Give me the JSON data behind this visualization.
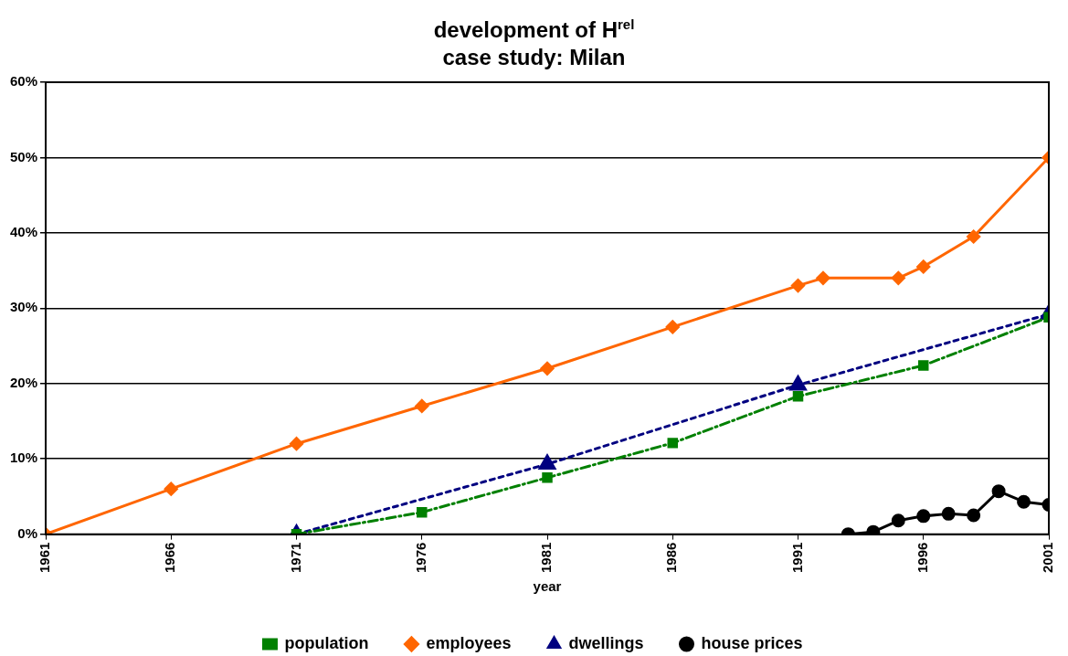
{
  "chart_data": {
    "type": "line",
    "title": "development of H$^{rel}$",
    "subtitle": "case study: Milan",
    "xlabel": "year",
    "xlim": [
      1961,
      2001
    ],
    "xticks": [
      1961,
      1966,
      1971,
      1976,
      1981,
      1986,
      1991,
      1996,
      2001
    ],
    "ylim": [
      0,
      60
    ],
    "yticks": [
      {
        "value": 0,
        "label": "0%"
      },
      {
        "value": 10,
        "label": "10%"
      },
      {
        "value": 20,
        "label": "20%"
      },
      {
        "value": 30,
        "label": "30%"
      },
      {
        "value": 40,
        "label": "40%"
      },
      {
        "value": 50,
        "label": "50%"
      },
      {
        "value": 60,
        "label": "60%"
      }
    ],
    "grid": "y",
    "legend": "bottom",
    "series": [
      {
        "name": "population",
        "color": "#008000",
        "marker": "square",
        "line_style": "dashed",
        "x": [
          1971,
          1976,
          1981,
          1986,
          1991,
          1996,
          2001
        ],
        "values": [
          0,
          2.9,
          7.5,
          12.1,
          18.3,
          22.4,
          28.8
        ]
      },
      {
        "name": "employees",
        "color": "#ff6600",
        "marker": "diamond",
        "line_style": "solid",
        "x": [
          1961,
          1966,
          1971,
          1976,
          1981,
          1986,
          1991,
          1992,
          1995,
          1996,
          1998,
          2001
        ],
        "values": [
          0,
          6,
          12,
          17,
          22,
          27.5,
          33,
          34,
          34,
          35.5,
          39.5,
          50
        ]
      },
      {
        "name": "dwellings",
        "color": "#000080",
        "marker": "triangle",
        "line_style": "dotted",
        "x": [
          1971,
          1981,
          1991,
          2001
        ],
        "values": [
          0,
          9.3,
          19.8,
          29.2
        ]
      },
      {
        "name": "house prices",
        "color": "#000000",
        "marker": "circle",
        "line_style": "solid",
        "x": [
          1993,
          1994,
          1995,
          1996,
          1997,
          1998,
          1999,
          2000,
          2001
        ],
        "values": [
          0,
          0.3,
          1.8,
          2.4,
          2.7,
          2.5,
          5.7,
          4.3,
          3.9
        ]
      }
    ]
  }
}
